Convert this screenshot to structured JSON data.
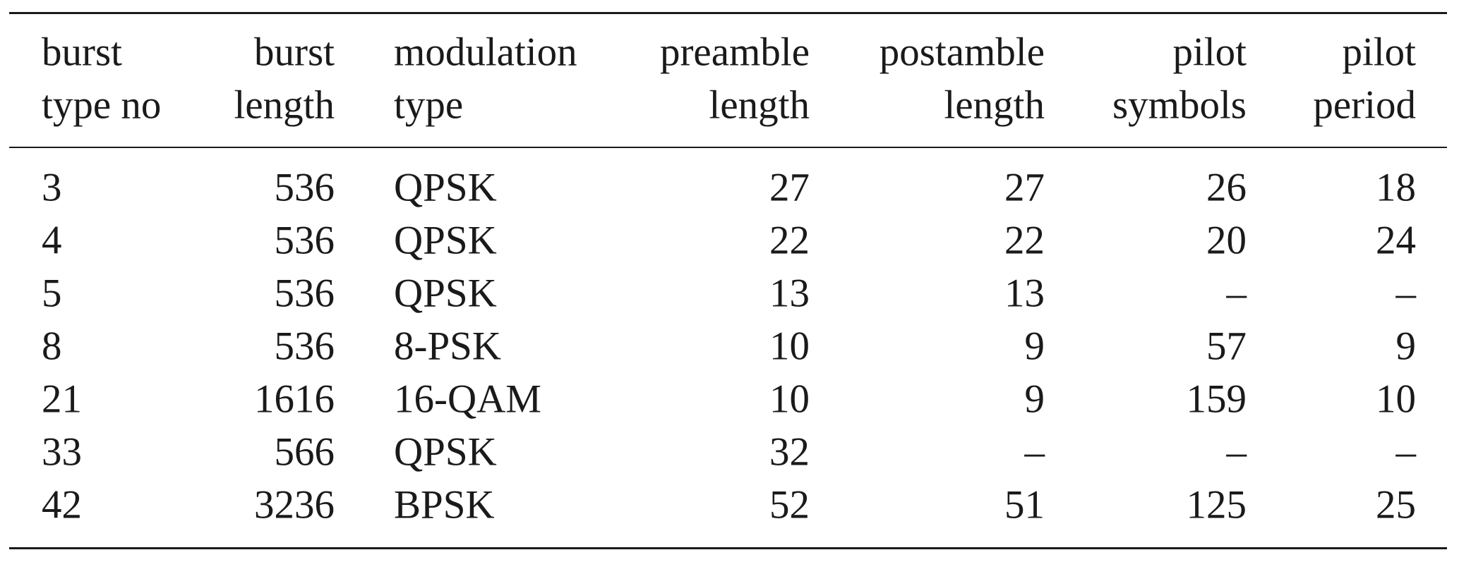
{
  "table": {
    "header": [
      [
        "burst",
        "type no"
      ],
      [
        "burst",
        "length"
      ],
      [
        "modulation",
        "type"
      ],
      [
        "preamble",
        "length"
      ],
      [
        "postamble",
        "length"
      ],
      [
        "pilot",
        "symbols"
      ],
      [
        "pilot",
        "period"
      ]
    ],
    "rows": [
      [
        "3",
        "536",
        "QPSK",
        "27",
        "27",
        "26",
        "18"
      ],
      [
        "4",
        "536",
        "QPSK",
        "22",
        "22",
        "20",
        "24"
      ],
      [
        "5",
        "536",
        "QPSK",
        "13",
        "13",
        "–",
        "–"
      ],
      [
        "8",
        "536",
        "8-PSK",
        "10",
        "9",
        "57",
        "9"
      ],
      [
        "21",
        "1616",
        "16-QAM",
        "10",
        "9",
        "159",
        "10"
      ],
      [
        "33",
        "566",
        "QPSK",
        "32",
        "–",
        "–",
        "–"
      ],
      [
        "42",
        "3236",
        "BPSK",
        "52",
        "51",
        "125",
        "25"
      ]
    ]
  }
}
